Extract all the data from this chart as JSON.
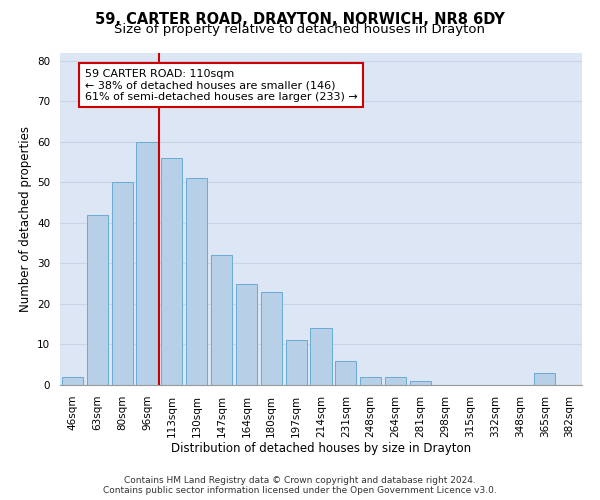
{
  "title_line1": "59, CARTER ROAD, DRAYTON, NORWICH, NR8 6DY",
  "title_line2": "Size of property relative to detached houses in Drayton",
  "xlabel": "Distribution of detached houses by size in Drayton",
  "ylabel": "Number of detached properties",
  "categories": [
    "46sqm",
    "63sqm",
    "80sqm",
    "96sqm",
    "113sqm",
    "130sqm",
    "147sqm",
    "164sqm",
    "180sqm",
    "197sqm",
    "214sqm",
    "231sqm",
    "248sqm",
    "264sqm",
    "281sqm",
    "298sqm",
    "315sqm",
    "332sqm",
    "348sqm",
    "365sqm",
    "382sqm"
  ],
  "values": [
    2,
    42,
    50,
    60,
    56,
    51,
    32,
    25,
    23,
    11,
    14,
    6,
    2,
    2,
    1,
    0,
    0,
    0,
    0,
    3,
    0
  ],
  "bar_color": "#b8cfe8",
  "bar_edge_color": "#6aaad4",
  "vline_color": "#cc0000",
  "vline_pos": 3.5,
  "annotation_text": "59 CARTER ROAD: 110sqm\n← 38% of detached houses are smaller (146)\n61% of semi-detached houses are larger (233) →",
  "annotation_box_color": "#ffffff",
  "annotation_box_edge_color": "#cc0000",
  "ylim": [
    0,
    82
  ],
  "yticks": [
    0,
    10,
    20,
    30,
    40,
    50,
    60,
    70,
    80
  ],
  "grid_color": "#c8d4e8",
  "background_color": "#dce6f5",
  "footer_line1": "Contains HM Land Registry data © Crown copyright and database right 2024.",
  "footer_line2": "Contains public sector information licensed under the Open Government Licence v3.0.",
  "title_fontsize": 10.5,
  "subtitle_fontsize": 9.5,
  "tick_fontsize": 7.5,
  "xlabel_fontsize": 8.5,
  "ylabel_fontsize": 8.5,
  "annotation_fontsize": 8.0,
  "footer_fontsize": 6.5
}
